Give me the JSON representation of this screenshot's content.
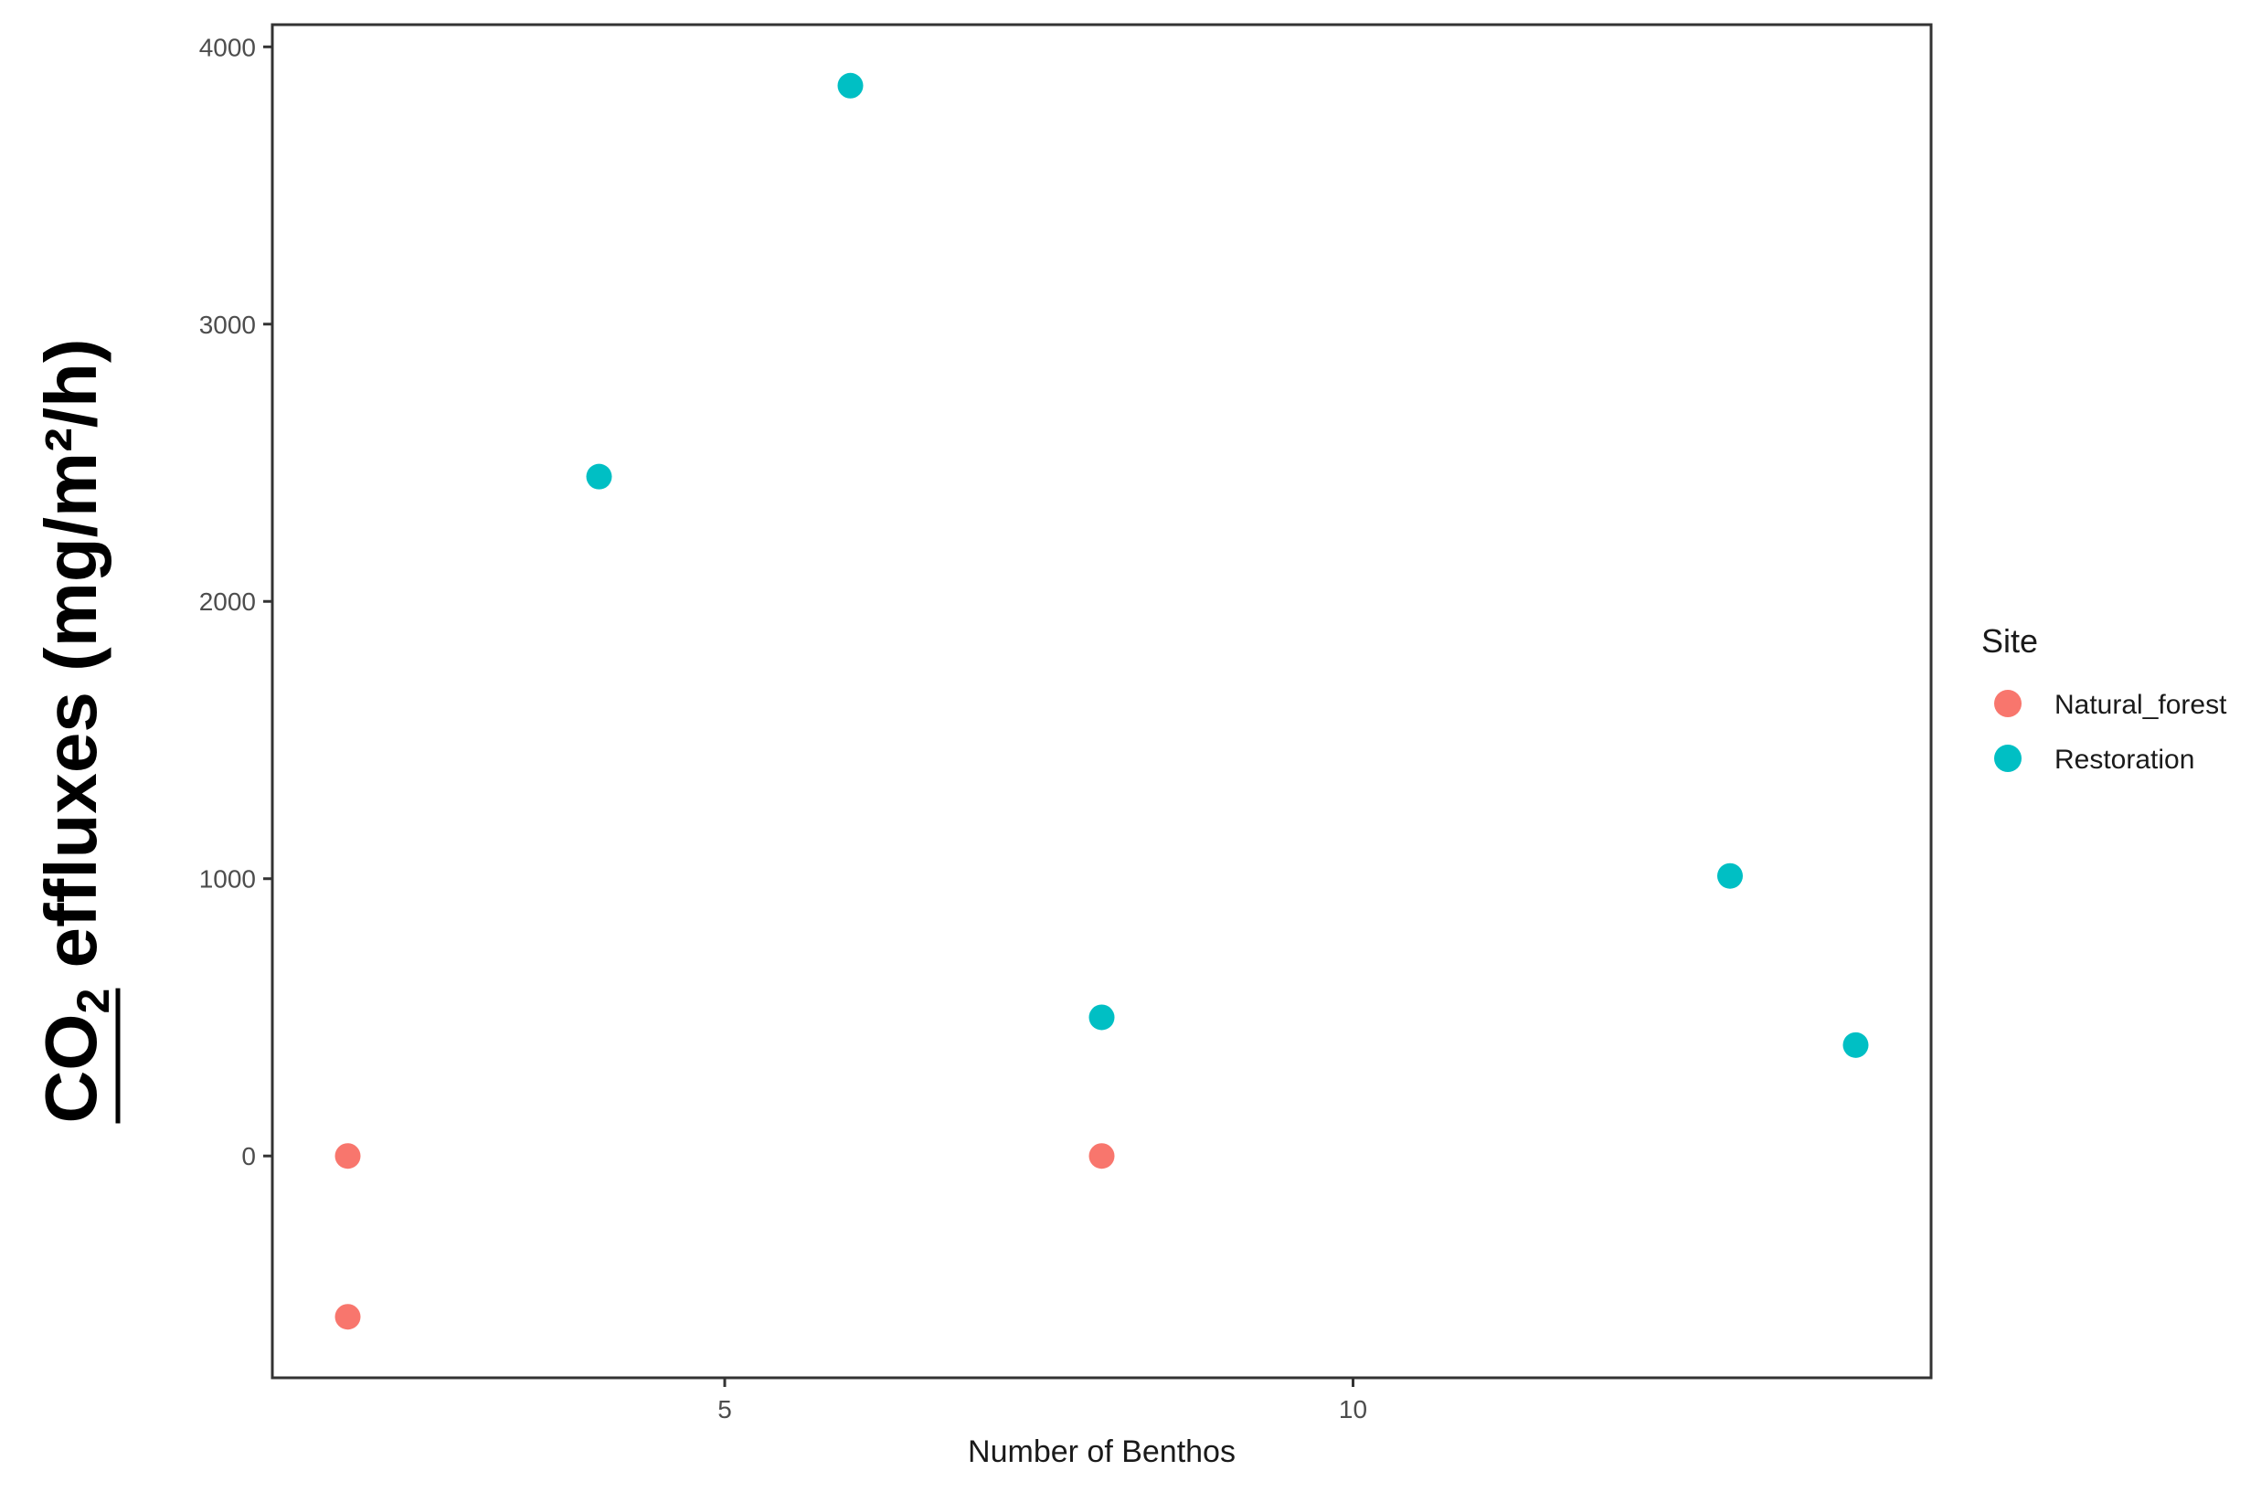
{
  "chart_data": {
    "type": "scatter",
    "title": "",
    "xlabel": "Number of Benthos",
    "ylabel_parts": {
      "pre": "CO",
      "sub": "2",
      "post": " effluxes (mg/m²/h)"
    },
    "xlim": [
      1.4,
      14.6
    ],
    "ylim": [
      -800,
      4080
    ],
    "x_ticks": [
      5,
      10
    ],
    "y_ticks": [
      0,
      1000,
      2000,
      3000,
      4000
    ],
    "grid": false,
    "legend": {
      "title": "Site",
      "position": "right"
    },
    "series": [
      {
        "name": "Natural_forest",
        "color": "#F8766D",
        "points": [
          {
            "x": 2,
            "y": 0
          },
          {
            "x": 2,
            "y": -580
          },
          {
            "x": 8,
            "y": 0
          }
        ]
      },
      {
        "name": "Restoration",
        "color": "#00BFC4",
        "points": [
          {
            "x": 4,
            "y": 2450
          },
          {
            "x": 6,
            "y": 3860
          },
          {
            "x": 8,
            "y": 500
          },
          {
            "x": 13,
            "y": 1010
          },
          {
            "x": 14,
            "y": 400
          }
        ]
      }
    ]
  }
}
